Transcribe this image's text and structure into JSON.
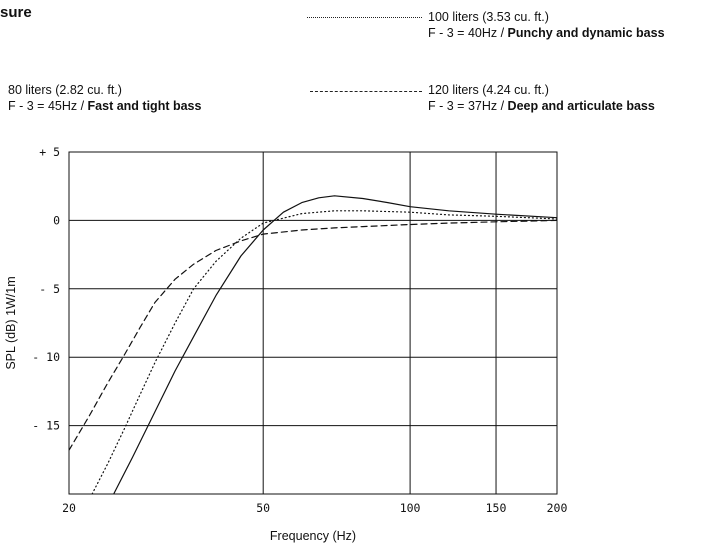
{
  "heading": "sure",
  "legend": [
    {
      "id": "l100",
      "style": "dotted",
      "line1": "100 liters (3.53 cu. ft.)",
      "prefix": "F - 3 = 40Hz / ",
      "desc": "Punchy and dynamic bass"
    },
    {
      "id": "l80",
      "style": "solid",
      "line1": "80 liters (2.82 cu. ft.)",
      "prefix": "F - 3 = 45Hz / ",
      "desc": "Fast and tight bass"
    },
    {
      "id": "l120",
      "style": "dashed",
      "line1": "120 liters (4.24 cu. ft.)",
      "prefix": "F - 3 = 37Hz / ",
      "desc": "Deep and articulate bass"
    }
  ],
  "chart_data": {
    "type": "line",
    "xlabel": "Frequency (Hz)",
    "ylabel": "SPL (dB) 1W/1m",
    "xscale": "log",
    "xlim": [
      20,
      200
    ],
    "ylim": [
      -20,
      5
    ],
    "grid": true,
    "xticks": [
      {
        "value": 20,
        "label": "20"
      },
      {
        "value": 50,
        "label": "50"
      },
      {
        "value": 100,
        "label": "100"
      },
      {
        "value": 150,
        "label": "150"
      },
      {
        "value": 200,
        "label": "200"
      }
    ],
    "yticks": [
      {
        "value": 5,
        "label": "+ 5"
      },
      {
        "value": 0,
        "label": "0"
      },
      {
        "value": -5,
        "label": "- 5"
      },
      {
        "value": -10,
        "label": "- 10"
      },
      {
        "value": -15,
        "label": "- 15"
      }
    ],
    "series": [
      {
        "name": "80 liters (2.82 cu. ft.)",
        "style": "solid",
        "x": [
          24.7,
          27,
          30,
          33,
          36,
          40,
          45,
          50,
          55,
          60,
          65,
          70,
          80,
          90,
          100,
          120,
          150,
          200
        ],
        "y": [
          -20,
          -17.3,
          -14,
          -11,
          -8.5,
          -5.5,
          -2.6,
          -0.7,
          0.6,
          1.3,
          1.65,
          1.8,
          1.6,
          1.3,
          1.0,
          0.7,
          0.45,
          0.2
        ]
      },
      {
        "name": "100 liters (3.53 cu. ft.)",
        "style": "dotted",
        "x": [
          22.3,
          24,
          26,
          28,
          30,
          33,
          36,
          40,
          45,
          50,
          60,
          70,
          80,
          100,
          120,
          150,
          200
        ],
        "y": [
          -20,
          -17.8,
          -15.2,
          -12.7,
          -10.4,
          -7.5,
          -5,
          -3,
          -1.3,
          -0.2,
          0.5,
          0.7,
          0.7,
          0.6,
          0.4,
          0.3,
          0.1
        ]
      },
      {
        "name": "120 liters (4.24 cu. ft.)",
        "style": "dashed",
        "x": [
          20,
          22,
          24,
          26,
          28,
          30,
          33,
          36,
          40,
          45,
          50,
          60,
          70,
          80,
          100,
          120,
          150,
          200
        ],
        "y": [
          -16.8,
          -14.3,
          -11.9,
          -9.8,
          -7.8,
          -6.0,
          -4.3,
          -3.2,
          -2.2,
          -1.5,
          -1.0,
          -0.7,
          -0.55,
          -0.45,
          -0.3,
          -0.2,
          -0.1,
          0.0
        ]
      }
    ]
  }
}
